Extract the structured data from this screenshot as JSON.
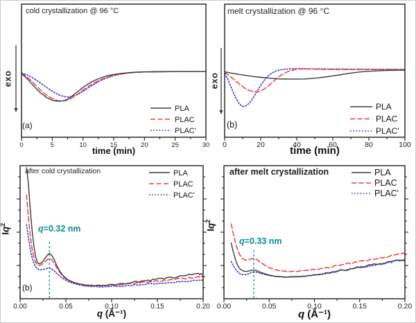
{
  "figure": {
    "background": "#ffffff",
    "annotation_color": "#0b8e8e",
    "series_colors": {
      "PLA": "#3a3a3a",
      "PLAC": "#ee3b3b",
      "PLAC'": "#4444dd"
    }
  },
  "chart_data": [
    {
      "type": "line",
      "title": "cold crystallization @ 96 °C",
      "panel_label": "(a)",
      "exo_label": "exo",
      "xlabel": "time (min)",
      "xlim": [
        0,
        30
      ],
      "ylim": [
        -1.9,
        1.95
      ],
      "grid": false,
      "legend_position": "bottom-right",
      "x_ticks": {
        "values": [
          0,
          5,
          10,
          15,
          20,
          25,
          30
        ],
        "labels": [
          "0",
          "5",
          "10",
          "15",
          "20",
          "25",
          "30"
        ],
        "minor_step": 2.5
      },
      "x": [
        0,
        1,
        2,
        3,
        4,
        5,
        5.5,
        6,
        6.5,
        7,
        7.5,
        8,
        9,
        10,
        11,
        12,
        13,
        14,
        15,
        16,
        17,
        18,
        19,
        20,
        22,
        25,
        27,
        30
      ],
      "series": [
        {
          "name": "PLA",
          "color": "#3a3a3a",
          "style": "solid",
          "y": [
            -0.06,
            -0.22,
            -0.42,
            -0.6,
            -0.74,
            -0.83,
            -0.85,
            -0.86,
            -0.855,
            -0.84,
            -0.8,
            -0.74,
            -0.6,
            -0.46,
            -0.34,
            -0.245,
            -0.175,
            -0.12,
            -0.085,
            -0.06,
            -0.04,
            -0.025,
            -0.015,
            -0.01,
            -0.005,
            0,
            0,
            0
          ]
        },
        {
          "name": "PLAC",
          "color": "#ee3b3b",
          "style": "dashed",
          "y": [
            -0.05,
            -0.17,
            -0.34,
            -0.52,
            -0.67,
            -0.78,
            -0.82,
            -0.845,
            -0.85,
            -0.845,
            -0.825,
            -0.785,
            -0.67,
            -0.535,
            -0.415,
            -0.31,
            -0.225,
            -0.16,
            -0.11,
            -0.075,
            -0.05,
            -0.03,
            -0.02,
            -0.01,
            -0.005,
            0,
            0,
            0
          ]
        },
        {
          "name": "PLAC'",
          "color": "#4444dd",
          "style": "dotted",
          "y": [
            -0.04,
            -0.1,
            -0.2,
            -0.32,
            -0.45,
            -0.565,
            -0.62,
            -0.665,
            -0.7,
            -0.725,
            -0.735,
            -0.73,
            -0.675,
            -0.575,
            -0.455,
            -0.345,
            -0.25,
            -0.175,
            -0.12,
            -0.08,
            -0.05,
            -0.03,
            -0.018,
            -0.01,
            -0.005,
            0,
            0,
            0
          ]
        }
      ]
    },
    {
      "type": "line",
      "title": "melt crystallization @ 96 °C",
      "panel_label": "(b)",
      "exo_label": "exo",
      "xlabel": "time (min)",
      "xlim": [
        0,
        100
      ],
      "ylim": [
        -1.84,
        1.8
      ],
      "grid": false,
      "legend_position": "bottom-right",
      "x_ticks": {
        "values": [
          0,
          20,
          40,
          60,
          80,
          100
        ],
        "labels": [
          "0",
          "20",
          "40",
          "60",
          "80",
          "100"
        ],
        "minor_step": 10
      },
      "x": [
        0,
        2,
        4,
        6,
        8,
        10,
        12,
        14,
        16,
        18,
        20,
        22,
        24,
        26,
        28,
        30,
        33,
        36,
        40,
        44,
        48,
        52,
        56,
        60,
        65,
        70,
        75,
        80,
        90,
        100
      ],
      "series": [
        {
          "name": "PLA",
          "color": "#3a3a3a",
          "style": "solid",
          "y": [
            -0.05,
            -0.07,
            -0.09,
            -0.105,
            -0.12,
            -0.135,
            -0.15,
            -0.165,
            -0.18,
            -0.19,
            -0.2,
            -0.21,
            -0.22,
            -0.23,
            -0.237,
            -0.243,
            -0.248,
            -0.25,
            -0.25,
            -0.245,
            -0.235,
            -0.215,
            -0.19,
            -0.165,
            -0.125,
            -0.085,
            -0.055,
            -0.035,
            -0.01,
            -0.005
          ]
        },
        {
          "name": "PLAC",
          "color": "#ee3b3b",
          "style": "dashed",
          "y": [
            -0.07,
            -0.13,
            -0.21,
            -0.3,
            -0.38,
            -0.455,
            -0.52,
            -0.565,
            -0.595,
            -0.6,
            -0.575,
            -0.52,
            -0.445,
            -0.36,
            -0.27,
            -0.19,
            -0.09,
            -0.025,
            0.02,
            0.03,
            0.025,
            0.02,
            0.015,
            0.012,
            0.01,
            0.01,
            0.01,
            0.01,
            0.01,
            0.01
          ]
        },
        {
          "name": "PLAC'",
          "color": "#4444dd",
          "style": "dotted",
          "y": [
            -0.1,
            -0.28,
            -0.52,
            -0.75,
            -0.92,
            -1.0,
            -0.98,
            -0.89,
            -0.75,
            -0.58,
            -0.42,
            -0.28,
            -0.17,
            -0.09,
            -0.04,
            -0.005,
            0.02,
            0.03,
            0.035,
            0.035,
            0.03,
            0.03,
            0.028,
            0.026,
            0.025,
            0.022,
            0.02,
            0.02,
            0.018,
            0.015
          ]
        }
      ]
    },
    {
      "type": "line",
      "title": "after cold crystallization",
      "panel_label": "(b)",
      "xlabel_var": "q",
      "xlabel_rest": " (Å⁻¹)",
      "ylabel": {
        "roman": "I",
        "italic": "q",
        "sup": "2"
      },
      "xlim": [
        0,
        0.2
      ],
      "ylim": [
        0,
        1
      ],
      "grid": false,
      "legend_position": "top-right",
      "marker": {
        "x": 0.032,
        "var": "q",
        "text": "=0.32 nm"
      },
      "x_ticks": {
        "values": [
          0,
          0.05,
          0.1,
          0.15,
          0.2
        ],
        "labels": [
          "0.00",
          "0.05",
          "0.10",
          "0.15",
          "0.20"
        ],
        "minor_step": 0.025
      },
      "x": [
        0.007,
        0.009,
        0.011,
        0.013,
        0.015,
        0.017,
        0.019,
        0.021,
        0.024,
        0.027,
        0.03,
        0.032,
        0.034,
        0.037,
        0.04,
        0.044,
        0.048,
        0.053,
        0.058,
        0.064,
        0.07,
        0.078,
        0.086,
        0.095,
        0.105,
        0.115,
        0.125,
        0.135,
        0.145,
        0.155,
        0.165,
        0.175,
        0.185,
        0.195,
        0.2
      ],
      "series": [
        {
          "name": "PLA",
          "color": "#3a3a3a",
          "style": "solid",
          "noise": 0.014,
          "y": [
            0.985,
            0.87,
            0.68,
            0.52,
            0.4,
            0.315,
            0.272,
            0.262,
            0.274,
            0.302,
            0.33,
            0.34,
            0.332,
            0.298,
            0.25,
            0.2,
            0.166,
            0.14,
            0.124,
            0.112,
            0.105,
            0.1,
            0.1,
            0.104,
            0.108,
            0.116,
            0.125,
            0.133,
            0.142,
            0.152,
            0.16,
            0.168,
            0.178,
            0.186,
            0.19
          ]
        },
        {
          "name": "PLAC",
          "color": "#ee3b3b",
          "style": "dashed",
          "noise": 0.012,
          "y": [
            0.78,
            0.62,
            0.48,
            0.378,
            0.312,
            0.273,
            0.253,
            0.249,
            0.259,
            0.278,
            0.296,
            0.303,
            0.296,
            0.27,
            0.233,
            0.192,
            0.16,
            0.137,
            0.122,
            0.11,
            0.103,
            0.098,
            0.097,
            0.1,
            0.104,
            0.109,
            0.116,
            0.123,
            0.13,
            0.137,
            0.144,
            0.15,
            0.157,
            0.163,
            0.166
          ]
        },
        {
          "name": "PLAC'",
          "color": "#4444dd",
          "style": "dotted",
          "noise": 0.01,
          "y": [
            0.557,
            0.46,
            0.376,
            0.312,
            0.268,
            0.24,
            0.225,
            0.218,
            0.218,
            0.223,
            0.229,
            0.231,
            0.226,
            0.211,
            0.19,
            0.166,
            0.146,
            0.129,
            0.115,
            0.104,
            0.097,
            0.092,
            0.09,
            0.091,
            0.094,
            0.098,
            0.103,
            0.108,
            0.113,
            0.118,
            0.124,
            0.128,
            0.133,
            0.138,
            0.14
          ]
        }
      ]
    },
    {
      "type": "line",
      "title": "after melt crystallization",
      "xlabel_var": "q",
      "xlabel_rest": " (Å⁻¹)",
      "ylabel": {
        "roman": "I",
        "italic": "q",
        "sup": "2"
      },
      "xlim": [
        0,
        0.2
      ],
      "ylim": [
        0,
        1
      ],
      "grid": false,
      "legend_position": "top-right",
      "marker": {
        "x": 0.033,
        "var": "q",
        "text": "=0.33 nm"
      },
      "x_ticks": {
        "values": [
          0,
          0.05,
          0.1,
          0.15,
          0.2
        ],
        "labels": [
          "0.00",
          "0.05",
          "0.10",
          "0.15",
          "0.20"
        ],
        "minor_step": 0.025
      },
      "x": [
        0.008,
        0.01,
        0.012,
        0.014,
        0.016,
        0.018,
        0.021,
        0.024,
        0.027,
        0.03,
        0.033,
        0.036,
        0.04,
        0.045,
        0.05,
        0.056,
        0.062,
        0.07,
        0.078,
        0.086,
        0.095,
        0.105,
        0.115,
        0.125,
        0.135,
        0.145,
        0.155,
        0.165,
        0.175,
        0.185,
        0.195,
        0.2
      ],
      "series": [
        {
          "name": "PLA",
          "color": "#3a3a3a",
          "style": "solid",
          "noise": 0.014,
          "y": [
            0.42,
            0.36,
            0.31,
            0.27,
            0.24,
            0.222,
            0.21,
            0.205,
            0.208,
            0.213,
            0.216,
            0.212,
            0.2,
            0.188,
            0.178,
            0.17,
            0.166,
            0.164,
            0.165,
            0.168,
            0.175,
            0.185,
            0.195,
            0.207,
            0.218,
            0.23,
            0.243,
            0.255,
            0.266,
            0.278,
            0.29,
            0.295
          ]
        },
        {
          "name": "PLAC",
          "color": "#ee3b3b",
          "style": "dashed",
          "noise": 0.013,
          "y": [
            0.5625,
            0.5,
            0.44,
            0.39,
            0.352,
            0.325,
            0.3,
            0.29,
            0.292,
            0.299,
            0.303,
            0.296,
            0.276,
            0.252,
            0.233,
            0.219,
            0.21,
            0.205,
            0.205,
            0.209,
            0.216,
            0.226,
            0.236,
            0.249,
            0.261,
            0.273,
            0.286,
            0.297,
            0.31,
            0.321,
            0.335,
            0.34
          ]
        },
        {
          "name": "PLAC'",
          "color": "#4444dd",
          "style": "dotted",
          "noise": 0.012,
          "y": [
            0.28,
            0.252,
            0.23,
            0.211,
            0.197,
            0.187,
            0.18,
            0.18,
            0.187,
            0.196,
            0.201,
            0.2,
            0.192,
            0.182,
            0.174,
            0.168,
            0.164,
            0.162,
            0.163,
            0.167,
            0.174,
            0.183,
            0.193,
            0.205,
            0.216,
            0.228,
            0.241,
            0.253,
            0.264,
            0.276,
            0.288,
            0.293
          ]
        }
      ]
    }
  ]
}
